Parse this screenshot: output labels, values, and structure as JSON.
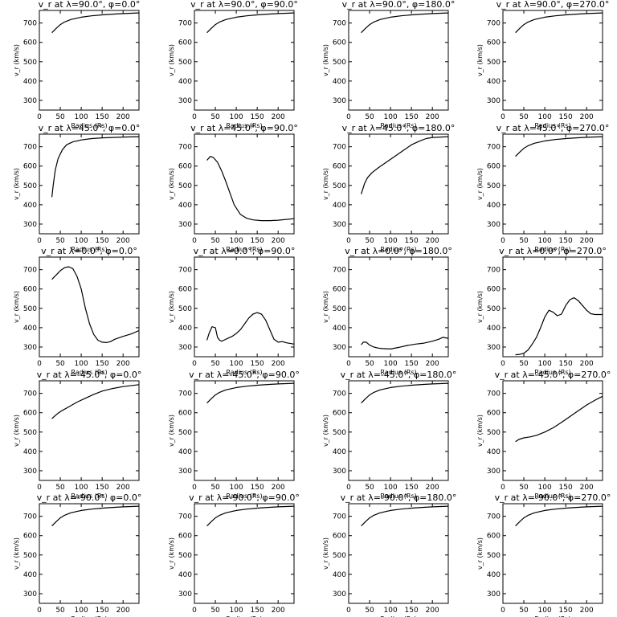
{
  "chart_data": [
    {
      "type": "line",
      "title": "v_r at λ=90.0°, φ=0.0°",
      "xlabel": "Radius (Rs)",
      "ylabel": "v_r (km/s)",
      "xlim": [
        0,
        238
      ],
      "ylim": [
        250,
        765
      ],
      "xticks": [
        0,
        50,
        100,
        150,
        200
      ],
      "yticks": [
        300,
        400,
        500,
        600,
        700
      ],
      "x": [
        30,
        40,
        50,
        60,
        75,
        100,
        125,
        150,
        175,
        200,
        238
      ],
      "values": [
        650,
        672,
        692,
        705,
        718,
        730,
        737,
        742,
        746,
        749,
        752
      ]
    },
    {
      "type": "line",
      "title": "v_r at λ=90.0°, φ=90.0°",
      "xlabel": "Radius (Rs)",
      "ylabel": "v_r (km/s)",
      "xlim": [
        0,
        238
      ],
      "ylim": [
        250,
        765
      ],
      "xticks": [
        0,
        50,
        100,
        150,
        200
      ],
      "yticks": [
        300,
        400,
        500,
        600,
        700
      ],
      "x": [
        30,
        40,
        50,
        60,
        75,
        100,
        125,
        150,
        175,
        200,
        238
      ],
      "values": [
        650,
        672,
        692,
        705,
        718,
        730,
        737,
        742,
        746,
        749,
        752
      ]
    },
    {
      "type": "line",
      "title": "v_r at λ=90.0°, φ=180.0°",
      "xlabel": "Radius (Rs)",
      "ylabel": "v_r (km/s)",
      "xlim": [
        0,
        238
      ],
      "ylim": [
        250,
        765
      ],
      "xticks": [
        0,
        50,
        100,
        150,
        200
      ],
      "yticks": [
        300,
        400,
        500,
        600,
        700
      ],
      "x": [
        30,
        40,
        50,
        60,
        75,
        100,
        125,
        150,
        175,
        200,
        238
      ],
      "values": [
        650,
        672,
        692,
        705,
        718,
        730,
        737,
        742,
        746,
        749,
        752
      ]
    },
    {
      "type": "line",
      "title": "v_r at λ=90.0°, φ=270.0°",
      "xlabel": "Radius (Rs)",
      "ylabel": "v_r (km/s)",
      "xlim": [
        0,
        238
      ],
      "ylim": [
        250,
        765
      ],
      "xticks": [
        0,
        50,
        100,
        150,
        200
      ],
      "yticks": [
        300,
        400,
        500,
        600,
        700
      ],
      "x": [
        30,
        40,
        50,
        60,
        75,
        100,
        125,
        150,
        175,
        200,
        238
      ],
      "values": [
        650,
        672,
        692,
        705,
        718,
        730,
        737,
        742,
        746,
        749,
        752
      ]
    },
    {
      "type": "line",
      "title": "v_r at λ=45.0°, φ=0.0°",
      "xlabel": "Radius (Rs)",
      "ylabel": "v_r (km/s)",
      "xlim": [
        0,
        238
      ],
      "ylim": [
        250,
        765
      ],
      "xticks": [
        0,
        50,
        100,
        150,
        200
      ],
      "yticks": [
        300,
        400,
        500,
        600,
        700
      ],
      "x": [
        30,
        33,
        38,
        45,
        55,
        65,
        80,
        100,
        125,
        150,
        175,
        200,
        238
      ],
      "values": [
        440,
        500,
        580,
        640,
        685,
        710,
        725,
        735,
        742,
        746,
        748,
        750,
        752
      ]
    },
    {
      "type": "line",
      "title": "v_r at λ=45.0°, φ=90.0°",
      "xlabel": "Radius (Rs)",
      "ylabel": "v_r (km/s)",
      "xlim": [
        0,
        238
      ],
      "ylim": [
        250,
        765
      ],
      "xticks": [
        0,
        50,
        100,
        150,
        200
      ],
      "yticks": [
        300,
        400,
        500,
        600,
        700
      ],
      "x": [
        30,
        38,
        45,
        55,
        65,
        75,
        85,
        95,
        110,
        125,
        140,
        160,
        180,
        200,
        238
      ],
      "values": [
        630,
        650,
        645,
        620,
        575,
        520,
        460,
        400,
        350,
        330,
        322,
        318,
        318,
        320,
        328
      ]
    },
    {
      "type": "line",
      "title": "v_r at λ=45.0°, φ=180.0°",
      "xlabel": "Radius (Rs)",
      "ylabel": "v_r (km/s)",
      "xlim": [
        0,
        238
      ],
      "ylim": [
        250,
        765
      ],
      "xticks": [
        0,
        50,
        100,
        150,
        200
      ],
      "yticks": [
        300,
        400,
        500,
        600,
        700
      ],
      "x": [
        30,
        38,
        45,
        55,
        70,
        90,
        110,
        130,
        150,
        170,
        185,
        200,
        238
      ],
      "values": [
        455,
        510,
        540,
        565,
        590,
        620,
        650,
        680,
        710,
        730,
        742,
        748,
        752
      ]
    },
    {
      "type": "line",
      "title": "v_r at λ=45.0°, φ=270.0°",
      "xlabel": "Radius (Rs)",
      "ylabel": "v_r (km/s)",
      "xlim": [
        0,
        238
      ],
      "ylim": [
        250,
        765
      ],
      "xticks": [
        0,
        50,
        100,
        150,
        200
      ],
      "yticks": [
        300,
        400,
        500,
        600,
        700
      ],
      "x": [
        30,
        40,
        50,
        60,
        75,
        100,
        125,
        150,
        175,
        200,
        238
      ],
      "values": [
        650,
        672,
        692,
        705,
        718,
        730,
        737,
        742,
        746,
        749,
        752
      ]
    },
    {
      "type": "line",
      "title": "v_r at λ=0.0°, φ=0.0°",
      "xlabel": "Radius (Rs)",
      "ylabel": "v_r (km/s)",
      "xlim": [
        0,
        238
      ],
      "ylim": [
        250,
        765
      ],
      "xticks": [
        0,
        50,
        100,
        150,
        200
      ],
      "yticks": [
        300,
        400,
        500,
        600,
        700
      ],
      "x": [
        30,
        40,
        50,
        60,
        70,
        80,
        90,
        100,
        110,
        120,
        130,
        140,
        150,
        160,
        170,
        180,
        200,
        220,
        238
      ],
      "values": [
        650,
        672,
        695,
        710,
        715,
        705,
        665,
        600,
        500,
        420,
        365,
        335,
        325,
        323,
        328,
        340,
        355,
        368,
        385
      ]
    },
    {
      "type": "line",
      "title": "v_r at λ=0.0°, φ=90.0°",
      "xlabel": "Radius (Rs)",
      "ylabel": "v_r (km/s)",
      "xlim": [
        0,
        238
      ],
      "ylim": [
        250,
        765
      ],
      "xticks": [
        0,
        50,
        100,
        150,
        200
      ],
      "yticks": [
        300,
        400,
        500,
        600,
        700
      ],
      "x": [
        30,
        35,
        42,
        50,
        55,
        60,
        65,
        70,
        80,
        90,
        100,
        110,
        120,
        130,
        140,
        150,
        160,
        170,
        180,
        190,
        200,
        210,
        220,
        238
      ],
      "values": [
        335,
        370,
        405,
        400,
        350,
        335,
        330,
        335,
        345,
        355,
        370,
        390,
        420,
        450,
        470,
        478,
        470,
        440,
        390,
        340,
        325,
        328,
        322,
        315
      ]
    },
    {
      "type": "line",
      "title": "v_r at λ=0.0°, φ=180.0°",
      "xlabel": "Radius (Rs)",
      "ylabel": "v_r (km/s)",
      "xlim": [
        0,
        238
      ],
      "ylim": [
        250,
        765
      ],
      "xticks": [
        0,
        50,
        100,
        150,
        200
      ],
      "yticks": [
        300,
        400,
        500,
        600,
        700
      ],
      "x": [
        30,
        35,
        42,
        50,
        60,
        70,
        80,
        100,
        120,
        140,
        160,
        180,
        200,
        215,
        225,
        238
      ],
      "values": [
        312,
        325,
        325,
        310,
        300,
        295,
        292,
        290,
        298,
        308,
        315,
        320,
        330,
        340,
        350,
        345
      ]
    },
    {
      "type": "line",
      "title": "v_r at λ=0.0°, φ=270.0°",
      "xlabel": "Radius (Rs)",
      "ylabel": "v_r (km/s)",
      "xlim": [
        0,
        238
      ],
      "ylim": [
        250,
        765
      ],
      "xticks": [
        0,
        50,
        100,
        150,
        200
      ],
      "yticks": [
        300,
        400,
        500,
        600,
        700
      ],
      "x": [
        30,
        40,
        50,
        60,
        70,
        80,
        90,
        100,
        110,
        120,
        130,
        140,
        150,
        160,
        170,
        180,
        190,
        200,
        210,
        220,
        238
      ],
      "values": [
        260,
        262,
        268,
        285,
        315,
        350,
        400,
        455,
        490,
        480,
        462,
        470,
        515,
        545,
        555,
        540,
        515,
        490,
        472,
        468,
        468
      ]
    },
    {
      "type": "line",
      "title": "v_r at λ=-45.0°, φ=0.0°",
      "xlabel": "Radius (Rs)",
      "ylabel": "v_r (km/s)",
      "xlim": [
        0,
        238
      ],
      "ylim": [
        250,
        765
      ],
      "xticks": [
        0,
        50,
        100,
        150,
        200
      ],
      "yticks": [
        300,
        400,
        500,
        600,
        700
      ],
      "x": [
        30,
        38,
        45,
        55,
        70,
        90,
        110,
        130,
        150,
        175,
        200,
        238
      ],
      "values": [
        570,
        585,
        598,
        612,
        630,
        655,
        675,
        695,
        712,
        725,
        735,
        745
      ]
    },
    {
      "type": "line",
      "title": "v_r at λ=-45.0°, φ=90.0°",
      "xlabel": "Radius (Rs)",
      "ylabel": "v_r (km/s)",
      "xlim": [
        0,
        238
      ],
      "ylim": [
        250,
        765
      ],
      "xticks": [
        0,
        50,
        100,
        150,
        200
      ],
      "yticks": [
        300,
        400,
        500,
        600,
        700
      ],
      "x": [
        30,
        40,
        50,
        60,
        75,
        100,
        125,
        150,
        175,
        200,
        238
      ],
      "values": [
        650,
        672,
        692,
        705,
        718,
        730,
        737,
        742,
        746,
        749,
        752
      ]
    },
    {
      "type": "line",
      "title": "v_r at λ=-45.0°, φ=180.0°",
      "xlabel": "Radius (Rs)",
      "ylabel": "v_r (km/s)",
      "xlim": [
        0,
        238
      ],
      "ylim": [
        250,
        765
      ],
      "xticks": [
        0,
        50,
        100,
        150,
        200
      ],
      "yticks": [
        300,
        400,
        500,
        600,
        700
      ],
      "x": [
        30,
        40,
        50,
        60,
        75,
        100,
        125,
        150,
        175,
        200,
        238
      ],
      "values": [
        650,
        672,
        692,
        705,
        718,
        730,
        737,
        742,
        746,
        749,
        752
      ]
    },
    {
      "type": "line",
      "title": "v_r at λ=-45.0°, φ=270.0°",
      "xlabel": "Radius (Rs)",
      "ylabel": "v_r (km/s)",
      "xlim": [
        0,
        238
      ],
      "ylim": [
        250,
        765
      ],
      "xticks": [
        0,
        50,
        100,
        150,
        200
      ],
      "yticks": [
        300,
        400,
        500,
        600,
        700
      ],
      "x": [
        30,
        38,
        50,
        65,
        80,
        100,
        120,
        140,
        160,
        180,
        200,
        220,
        238
      ],
      "values": [
        450,
        462,
        470,
        475,
        483,
        500,
        522,
        550,
        580,
        610,
        640,
        665,
        685
      ]
    },
    {
      "type": "line",
      "title": "v_r at λ=-90.0°, φ=0.0°",
      "xlabel": "Radius (Rs)",
      "ylabel": "v_r (km/s)",
      "xlim": [
        0,
        238
      ],
      "ylim": [
        250,
        765
      ],
      "xticks": [
        0,
        50,
        100,
        150,
        200
      ],
      "yticks": [
        300,
        400,
        500,
        600,
        700
      ],
      "x": [
        30,
        40,
        50,
        60,
        75,
        100,
        125,
        150,
        175,
        200,
        238
      ],
      "values": [
        650,
        672,
        692,
        705,
        718,
        730,
        737,
        742,
        746,
        749,
        752
      ]
    },
    {
      "type": "line",
      "title": "v_r at λ=-90.0°, φ=90.0°",
      "xlabel": "Radius (Rs)",
      "ylabel": "v_r (km/s)",
      "xlim": [
        0,
        238
      ],
      "ylim": [
        250,
        765
      ],
      "xticks": [
        0,
        50,
        100,
        150,
        200
      ],
      "yticks": [
        300,
        400,
        500,
        600,
        700
      ],
      "x": [
        30,
        40,
        50,
        60,
        75,
        100,
        125,
        150,
        175,
        200,
        238
      ],
      "values": [
        650,
        672,
        692,
        705,
        718,
        730,
        737,
        742,
        746,
        749,
        752
      ]
    },
    {
      "type": "line",
      "title": "v_r at λ=-90.0°, φ=180.0°",
      "xlabel": "Radius (Rs)",
      "ylabel": "v_r (km/s)",
      "xlim": [
        0,
        238
      ],
      "ylim": [
        250,
        765
      ],
      "xticks": [
        0,
        50,
        100,
        150,
        200
      ],
      "yticks": [
        300,
        400,
        500,
        600,
        700
      ],
      "x": [
        30,
        40,
        50,
        60,
        75,
        100,
        125,
        150,
        175,
        200,
        238
      ],
      "values": [
        650,
        672,
        692,
        705,
        718,
        730,
        737,
        742,
        746,
        749,
        752
      ]
    },
    {
      "type": "line",
      "title": "v_r at λ=-90.0°, φ=270.0°",
      "xlabel": "Radius (Rs)",
      "ylabel": "v_r (km/s)",
      "xlim": [
        0,
        238
      ],
      "ylim": [
        250,
        765
      ],
      "xticks": [
        0,
        50,
        100,
        150,
        200
      ],
      "yticks": [
        300,
        400,
        500,
        600,
        700
      ],
      "x": [
        30,
        40,
        50,
        60,
        75,
        100,
        125,
        150,
        175,
        200,
        238
      ],
      "values": [
        650,
        672,
        692,
        705,
        718,
        730,
        737,
        742,
        746,
        749,
        752
      ]
    }
  ]
}
